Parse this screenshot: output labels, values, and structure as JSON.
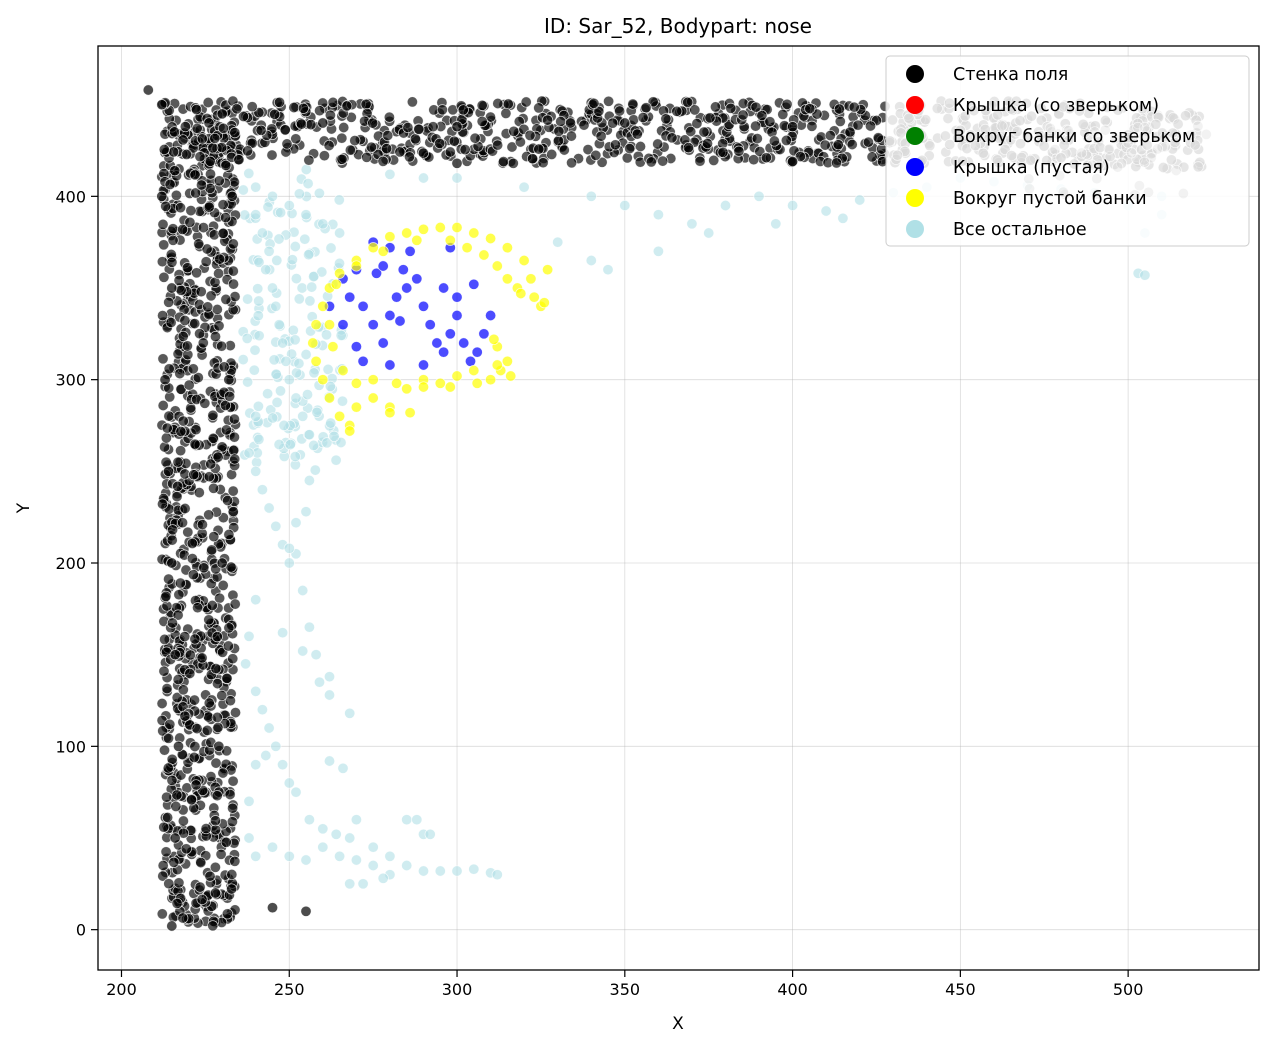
{
  "chart_data": {
    "type": "scatter",
    "title": "ID: Sar_52, Bodypart: nose",
    "xlabel": "X",
    "ylabel": "Y",
    "xlim": [
      193,
      539
    ],
    "ylim": [
      -22,
      482
    ],
    "xticks": [
      200,
      250,
      300,
      350,
      400,
      450,
      500
    ],
    "yticks": [
      0,
      100,
      200,
      300,
      400
    ],
    "grid": true,
    "legend_position": "top-right",
    "series": [
      {
        "name": "Стенка поля",
        "color": "#000000",
        "shape": "walls-L",
        "description_points": [
          [
            208,
            458
          ],
          [
            212,
            450
          ],
          [
            230,
            445
          ],
          [
            260,
            440
          ],
          [
            300,
            438
          ],
          [
            350,
            440
          ],
          [
            400,
            438
          ],
          [
            450,
            436
          ],
          [
            500,
            432
          ],
          [
            520,
            428
          ],
          [
            235,
            420
          ],
          [
            300,
            418
          ],
          [
            400,
            419
          ],
          [
            480,
            421
          ],
          [
            212,
            400
          ],
          [
            215,
            350
          ],
          [
            213,
            300
          ],
          [
            214,
            250
          ],
          [
            215,
            200
          ],
          [
            216,
            150
          ],
          [
            217,
            100
          ],
          [
            216,
            50
          ],
          [
            215,
            2
          ],
          [
            233,
            400
          ],
          [
            232,
            300
          ],
          [
            230,
            200
          ],
          [
            229,
            100
          ],
          [
            228,
            20
          ],
          [
            245,
            12
          ],
          [
            255,
            10
          ]
        ]
      },
      {
        "name": "Крышка (со зверьком)",
        "color": "#ff0000",
        "points": []
      },
      {
        "name": "Вокруг банки со зверьком",
        "color": "#008000",
        "points": []
      },
      {
        "name": "Крышка (пустая)",
        "color": "#0000ff",
        "points": [
          [
            266,
            355
          ],
          [
            268,
            345
          ],
          [
            270,
            360
          ],
          [
            272,
            340
          ],
          [
            275,
            330
          ],
          [
            278,
            320
          ],
          [
            280,
            335
          ],
          [
            282,
            345
          ],
          [
            284,
            360
          ],
          [
            286,
            370
          ],
          [
            288,
            355
          ],
          [
            290,
            340
          ],
          [
            292,
            330
          ],
          [
            294,
            320
          ],
          [
            296,
            315
          ],
          [
            298,
            325
          ],
          [
            300,
            335
          ],
          [
            302,
            320
          ],
          [
            304,
            310
          ],
          [
            306,
            315
          ],
          [
            308,
            325
          ],
          [
            310,
            335
          ],
          [
            283,
            332
          ],
          [
            276,
            358
          ],
          [
            270,
            318
          ],
          [
            266,
            330
          ],
          [
            262,
            340
          ],
          [
            272,
            310
          ],
          [
            280,
            308
          ],
          [
            290,
            308
          ],
          [
            296,
            350
          ],
          [
            298,
            372
          ],
          [
            305,
            352
          ],
          [
            300,
            345
          ],
          [
            285,
            350
          ],
          [
            278,
            362
          ],
          [
            275,
            375
          ],
          [
            280,
            372
          ]
        ]
      },
      {
        "name": "Вокруг пустой банки",
        "color": "#ffff00",
        "points": [
          [
            260,
            340
          ],
          [
            258,
            330
          ],
          [
            257,
            320
          ],
          [
            258,
            310
          ],
          [
            260,
            300
          ],
          [
            262,
            290
          ],
          [
            265,
            280
          ],
          [
            268,
            275
          ],
          [
            270,
            285
          ],
          [
            275,
            290
          ],
          [
            280,
            285
          ],
          [
            285,
            295
          ],
          [
            290,
            300
          ],
          [
            295,
            298
          ],
          [
            300,
            302
          ],
          [
            305,
            305
          ],
          [
            310,
            300
          ],
          [
            313,
            305
          ],
          [
            315,
            310
          ],
          [
            312,
            318
          ],
          [
            262,
            350
          ],
          [
            265,
            358
          ],
          [
            270,
            365
          ],
          [
            275,
            372
          ],
          [
            280,
            378
          ],
          [
            285,
            380
          ],
          [
            290,
            382
          ],
          [
            295,
            383
          ],
          [
            300,
            383
          ],
          [
            305,
            380
          ],
          [
            310,
            377
          ],
          [
            315,
            372
          ],
          [
            320,
            365
          ],
          [
            322,
            355
          ],
          [
            323,
            345
          ],
          [
            325,
            340
          ],
          [
            318,
            350
          ],
          [
            315,
            355
          ],
          [
            312,
            362
          ],
          [
            308,
            368
          ],
          [
            303,
            372
          ],
          [
            298,
            376
          ],
          [
            288,
            376
          ],
          [
            278,
            370
          ],
          [
            270,
            362
          ],
          [
            264,
            352
          ],
          [
            262,
            330
          ],
          [
            263,
            318
          ],
          [
            266,
            305
          ],
          [
            270,
            298
          ],
          [
            275,
            300
          ],
          [
            282,
            298
          ],
          [
            290,
            296
          ],
          [
            298,
            296
          ],
          [
            306,
            298
          ],
          [
            312,
            308
          ],
          [
            316,
            302
          ],
          [
            280,
            282
          ],
          [
            286,
            282
          ],
          [
            268,
            272
          ],
          [
            327,
            360
          ],
          [
            326,
            342
          ],
          [
            319,
            347
          ],
          [
            311,
            322
          ]
        ]
      },
      {
        "name": "Все остальное",
        "color": "#b0e0e6",
        "points": [
          [
            240,
            405
          ],
          [
            245,
            400
          ],
          [
            250,
            395
          ],
          [
            255,
            390
          ],
          [
            260,
            385
          ],
          [
            265,
            380
          ],
          [
            240,
            390
          ],
          [
            242,
            380
          ],
          [
            244,
            370
          ],
          [
            243,
            360
          ],
          [
            245,
            350
          ],
          [
            246,
            340
          ],
          [
            247,
            330
          ],
          [
            248,
            320
          ],
          [
            249,
            310
          ],
          [
            250,
            300
          ],
          [
            252,
            290
          ],
          [
            254,
            280
          ],
          [
            256,
            270
          ],
          [
            240,
            280
          ],
          [
            238,
            260
          ],
          [
            240,
            250
          ],
          [
            242,
            240
          ],
          [
            244,
            230
          ],
          [
            246,
            220
          ],
          [
            248,
            210
          ],
          [
            250,
            200
          ],
          [
            252,
            205
          ],
          [
            254,
            185
          ],
          [
            256,
            165
          ],
          [
            258,
            150
          ],
          [
            240,
            180
          ],
          [
            238,
            160
          ],
          [
            237,
            145
          ],
          [
            240,
            130
          ],
          [
            242,
            120
          ],
          [
            244,
            110
          ],
          [
            246,
            100
          ],
          [
            248,
            90
          ],
          [
            250,
            80
          ],
          [
            252,
            75
          ],
          [
            256,
            60
          ],
          [
            260,
            55
          ],
          [
            264,
            52
          ],
          [
            268,
            50
          ],
          [
            260,
            45
          ],
          [
            265,
            40
          ],
          [
            270,
            38
          ],
          [
            275,
            35
          ],
          [
            280,
            30
          ],
          [
            285,
            35
          ],
          [
            290,
            32
          ],
          [
            295,
            32
          ],
          [
            300,
            32
          ],
          [
            305,
            33
          ],
          [
            310,
            31
          ],
          [
            312,
            30
          ],
          [
            255,
            38
          ],
          [
            250,
            40
          ],
          [
            245,
            45
          ],
          [
            240,
            40
          ],
          [
            238,
            50
          ],
          [
            238,
            70
          ],
          [
            240,
            90
          ],
          [
            243,
            95
          ],
          [
            262,
            92
          ],
          [
            266,
            88
          ],
          [
            268,
            118
          ],
          [
            262,
            128
          ],
          [
            259,
            135
          ],
          [
            262,
            138
          ],
          [
            248,
            162
          ],
          [
            254,
            152
          ],
          [
            250,
            208
          ],
          [
            252,
            222
          ],
          [
            256,
            245
          ],
          [
            255,
            228
          ],
          [
            300,
            410
          ],
          [
            320,
            405
          ],
          [
            340,
            400
          ],
          [
            350,
            395
          ],
          [
            360,
            390
          ],
          [
            370,
            385
          ],
          [
            380,
            395
          ],
          [
            390,
            400
          ],
          [
            400,
            395
          ],
          [
            410,
            392
          ],
          [
            420,
            398
          ],
          [
            430,
            402
          ],
          [
            440,
            405
          ],
          [
            450,
            410
          ],
          [
            460,
            408
          ],
          [
            470,
            406
          ],
          [
            480,
            404
          ],
          [
            490,
            402
          ],
          [
            500,
            395
          ],
          [
            510,
            400
          ],
          [
            505,
            380
          ],
          [
            510,
            390
          ],
          [
            280,
            412
          ],
          [
            290,
            410
          ],
          [
            330,
            375
          ],
          [
            340,
            365
          ],
          [
            345,
            360
          ],
          [
            360,
            370
          ],
          [
            375,
            380
          ],
          [
            395,
            385
          ],
          [
            415,
            388
          ],
          [
            503,
            358
          ],
          [
            505,
            357
          ],
          [
            290,
            52
          ],
          [
            285,
            60
          ],
          [
            280,
            40
          ],
          [
            275,
            45
          ],
          [
            270,
            60
          ],
          [
            268,
            25
          ],
          [
            272,
            25
          ],
          [
            278,
            28
          ],
          [
            288,
            60
          ],
          [
            292,
            52
          ]
        ]
      }
    ]
  }
}
